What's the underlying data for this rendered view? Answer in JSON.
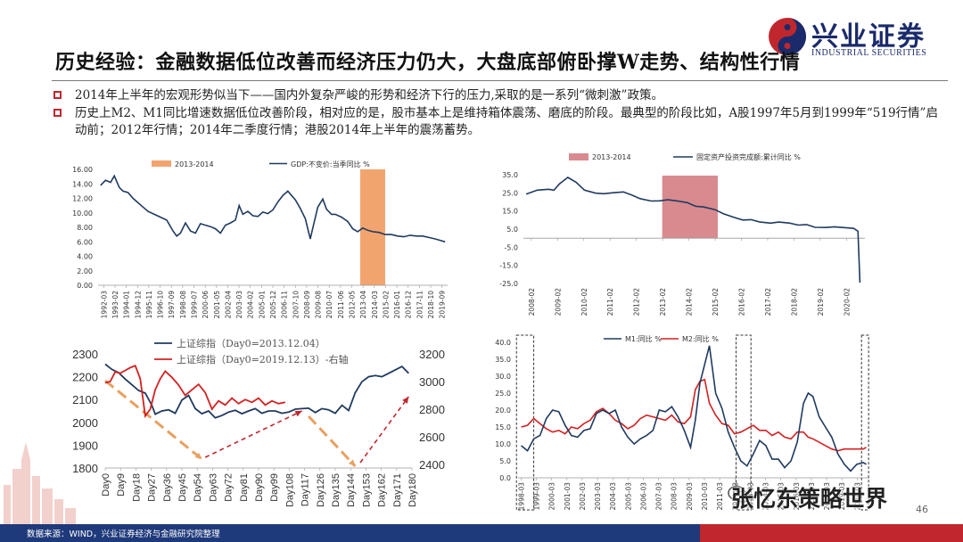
{
  "title": "历史经验：金融数据低位改善而经济压力仍大，大盘底部俯卧撑W走势、结构性行情",
  "brand": {
    "name": "兴业证券",
    "sub": "INDUSTRIAL SECURITIES",
    "logo_icon": "taiji-logo-icon"
  },
  "bullets": [
    "2014年上半年的宏观形势似当下——国内外复杂严峻的形势和经济下行的压力,采取的是一系列“微刺激”政策。",
    "历史上M2、M1同比增速数据低位改善阶段，相对应的是，股市基本上是维持箱体震荡、磨底的阶段。最典型的阶段比如，A股1997年5月到1999年“519行情”启动前；2012年行情；2014年二季度行情；港股2014年上半年的震荡蓄势。"
  ],
  "footer": {
    "source": "数据来源：WIND，兴业证券经济与金融研究院整理"
  },
  "page_number": "46",
  "watermark": "张忆东策略世界",
  "colors": {
    "navy": "#1f3a5f",
    "orange": "#f2a46e",
    "pink": "#d98a8f",
    "red": "#d42020",
    "brand_blue": "#1a2a6b",
    "brand_red": "#c0272d",
    "dashed_arrow_orange": "#e8a060",
    "dashed_arrow_red": "#c0272d"
  },
  "chart_data": [
    {
      "id": "gdp",
      "type": "line",
      "legend": [
        "2013-2014",
        "GDP:不变价:当季同比 %"
      ],
      "yticks": [
        "16.00",
        "14.00",
        "12.00",
        "10.00",
        "8.00",
        "6.00",
        "4.00",
        "2.00",
        "0.00"
      ],
      "ylim": [
        0,
        16
      ],
      "xticks": [
        "1992-03",
        "1993-02",
        "1994-01",
        "1994-12",
        "1995-11",
        "1996-10",
        "1997-09",
        "1998-08",
        "1999-07",
        "2000-06",
        "2001-05",
        "2002-04",
        "2003-03",
        "2004-02",
        "2005-01",
        "2005-12",
        "2006-11",
        "2007-10",
        "2008-09",
        "2009-08",
        "2010-07",
        "2011-06",
        "2012-05",
        "2013-04",
        "2014-03",
        "2015-02",
        "2016-01",
        "2016-12",
        "2017-11",
        "2018-10",
        "2019-09"
      ],
      "shade": {
        "from": 2013.0,
        "to": 2015.0
      },
      "xrange": [
        1992.0,
        2020.0
      ],
      "series": [
        {
          "name": "GDP:不变价:当季同比 %",
          "x": [
            1992.2,
            1992.6,
            1993.0,
            1993.3,
            1993.7,
            1994.0,
            1994.4,
            1994.8,
            1995.2,
            1995.6,
            1996.0,
            1996.5,
            1997.0,
            1997.5,
            1998.0,
            1998.3,
            1998.6,
            1999.0,
            1999.4,
            1999.8,
            2000.2,
            2000.6,
            2001.0,
            2001.4,
            2001.8,
            2002.2,
            2002.6,
            2003.0,
            2003.3,
            2003.6,
            2004.0,
            2004.4,
            2004.8,
            2005.2,
            2005.6,
            2006.0,
            2006.4,
            2006.8,
            2007.2,
            2007.5,
            2007.8,
            2008.2,
            2008.6,
            2009.0,
            2009.2,
            2009.6,
            2010.0,
            2010.3,
            2010.7,
            2011.0,
            2011.5,
            2012.0,
            2012.4,
            2012.8,
            2013.2,
            2013.6,
            2014.0,
            2014.5,
            2015.0,
            2015.5,
            2016.0,
            2016.5,
            2017.0,
            2017.5,
            2018.0,
            2018.5,
            2019.0,
            2019.4,
            2019.8
          ],
          "values": [
            13.8,
            14.5,
            14.2,
            15.1,
            13.5,
            13.0,
            12.8,
            12.0,
            11.4,
            10.8,
            10.2,
            9.8,
            9.4,
            9.0,
            7.5,
            6.8,
            7.2,
            8.6,
            7.5,
            7.2,
            8.5,
            8.3,
            8.1,
            7.8,
            7.2,
            8.3,
            8.6,
            9.0,
            11.0,
            9.8,
            10.2,
            9.6,
            9.5,
            10.1,
            9.9,
            10.4,
            11.5,
            12.4,
            13.0,
            12.4,
            11.8,
            10.6,
            9.2,
            6.4,
            7.9,
            10.8,
            11.9,
            10.5,
            9.8,
            9.8,
            9.4,
            8.8,
            7.8,
            7.4,
            7.9,
            7.6,
            7.4,
            7.3,
            7.0,
            7.0,
            6.8,
            6.7,
            6.9,
            6.8,
            6.8,
            6.6,
            6.4,
            6.2,
            6.0
          ]
        }
      ]
    },
    {
      "id": "fai",
      "type": "line",
      "legend": [
        "2013-2014",
        "固定资产投资完成额:累计同比 %"
      ],
      "yticks": [
        "35.0",
        "25.0",
        "15.0",
        "5.0",
        "-5.0",
        "-15.0",
        "-25.0"
      ],
      "ylim": [
        -25,
        35
      ],
      "xticks": [
        "2008-02",
        "2009-02",
        "2010-02",
        "2011-02",
        "2012-02",
        "2013-02",
        "2014-02",
        "2015-02",
        "2016-02",
        "2017-02",
        "2018-02",
        "2019-02",
        "2020-02"
      ],
      "shade": {
        "from": 2013.0,
        "to": 2015.0
      },
      "xrange": [
        2008.0,
        2020.3
      ],
      "series": [
        {
          "name": "固定资产投资完成额:累计同比 %",
          "x": [
            2008.1,
            2008.5,
            2008.9,
            2009.1,
            2009.3,
            2009.6,
            2009.9,
            2010.2,
            2010.6,
            2010.9,
            2011.2,
            2011.6,
            2011.9,
            2012.2,
            2012.6,
            2012.9,
            2013.2,
            2013.6,
            2013.9,
            2014.2,
            2014.5,
            2014.9,
            2015.2,
            2015.6,
            2015.9,
            2016.2,
            2016.5,
            2016.9,
            2017.2,
            2017.6,
            2017.9,
            2018.2,
            2018.5,
            2018.9,
            2019.2,
            2019.6,
            2019.9,
            2020.05,
            2020.12
          ],
          "values": [
            24.3,
            26.5,
            27.0,
            26.5,
            30.0,
            33.5,
            30.8,
            26.5,
            24.8,
            24.5,
            25.0,
            25.5,
            23.8,
            21.8,
            20.5,
            20.6,
            21.2,
            20.4,
            19.6,
            17.6,
            17.2,
            15.7,
            13.5,
            11.4,
            10.0,
            10.2,
            9.0,
            8.3,
            8.9,
            8.3,
            7.2,
            7.5,
            6.0,
            5.9,
            6.3,
            5.8,
            5.4,
            3.8,
            -24.5
          ]
        }
      ]
    },
    {
      "id": "szzs",
      "type": "line",
      "legend": [
        "上证综指（Day0=2013.12.04）",
        "上证综指（Day0=2019.12.13）-右轴"
      ],
      "yticks_left": [
        "2300",
        "2200",
        "2100",
        "2000",
        "1900",
        "1800"
      ],
      "yticks_right": [
        "3200",
        "3000",
        "2800",
        "2600",
        "2400"
      ],
      "ylim_left": [
        1800,
        2300
      ],
      "ylim_right": [
        2400,
        3200
      ],
      "xticks": [
        "Day0",
        "Day9",
        "Day18",
        "Day27",
        "Day36",
        "Day45",
        "Day54",
        "Day63",
        "Day72",
        "Day81",
        "Day90",
        "Day99",
        "Day108",
        "Day117",
        "Day126",
        "Day135",
        "Day144",
        "Day153",
        "Day162",
        "Day171",
        "Day180"
      ],
      "xrange": [
        0,
        184
      ],
      "series": [
        {
          "name": "上证综指（Day0=2013.12.04）",
          "axis": "left",
          "x": [
            0,
            4,
            8,
            12,
            16,
            20,
            24,
            28,
            30,
            34,
            38,
            42,
            46,
            50,
            54,
            58,
            62,
            66,
            70,
            74,
            78,
            82,
            86,
            90,
            94,
            98,
            102,
            106,
            110,
            114,
            118,
            122,
            126,
            130,
            134,
            138,
            142,
            146,
            150,
            154,
            158,
            162,
            166,
            170,
            174,
            178,
            182
          ],
          "values": [
            2255,
            2232,
            2218,
            2190,
            2165,
            2140,
            2128,
            2075,
            2036,
            2050,
            2055,
            2040,
            2098,
            2118,
            2060,
            2038,
            2050,
            2020,
            2030,
            2045,
            2053,
            2038,
            2050,
            2060,
            2040,
            2050,
            2050,
            2040,
            2045,
            2058,
            2060,
            2062,
            2043,
            2060,
            2055,
            2040,
            2075,
            2052,
            2130,
            2178,
            2200,
            2205,
            2200,
            2215,
            2230,
            2245,
            2215
          ]
        },
        {
          "name": "上证综指（Day0=2019.12.13）-右轴",
          "axis": "right",
          "x": [
            0,
            3,
            6,
            9,
            12,
            15,
            18,
            21,
            24,
            27,
            30,
            33,
            36,
            40,
            44,
            48,
            52,
            56,
            60,
            64,
            68,
            72,
            76,
            80,
            84,
            88,
            92,
            96,
            100,
            104,
            108
          ],
          "values": [
            2990,
            3000,
            3070,
            3060,
            3080,
            3100,
            3115,
            3020,
            2750,
            2800,
            2940,
            3020,
            3075,
            3030,
            2975,
            2900,
            2940,
            2980,
            2920,
            2800,
            2860,
            2830,
            2880,
            2840,
            2870,
            2850,
            2880,
            2830,
            2860,
            2840,
            2850
          ]
        }
      ],
      "arrows": [
        "down-left",
        "up-left",
        "down-right",
        "up-right"
      ]
    },
    {
      "id": "m1m2",
      "type": "line",
      "legend": [
        "M1:同比 %",
        "M2:同比 %"
      ],
      "yticks": [
        "40.0",
        "35.0",
        "30.0",
        "25.0",
        "20.0",
        "15.0",
        "10.0",
        "5.0",
        "0.0"
      ],
      "ylim": [
        0,
        40
      ],
      "xticks": [
        "1998-03",
        "1999-03",
        "2000-03",
        "2001-03",
        "2002-03",
        "2003-03",
        "2004-03",
        "2005-03",
        "2006-03",
        "2007-03",
        "2008-03",
        "2009-03",
        "2010-03",
        "2011-03",
        "2012-03",
        "2013-03",
        "2014-03",
        "2015-03",
        "2016-03",
        "2017-03",
        "2018-03",
        "2019-03",
        "2020-03"
      ],
      "xrange": [
        1998.0,
        2020.4
      ],
      "series": [
        {
          "name": "M1:同比 %",
          "x": [
            1998.2,
            1998.6,
            1999.0,
            1999.4,
            1999.8,
            2000.2,
            2000.6,
            2001.0,
            2001.4,
            2001.8,
            2002.2,
            2002.6,
            2003.0,
            2003.4,
            2003.8,
            2004.2,
            2004.6,
            2005.0,
            2005.4,
            2005.8,
            2006.2,
            2006.6,
            2007.0,
            2007.4,
            2007.8,
            2008.2,
            2008.6,
            2009.0,
            2009.3,
            2009.6,
            2009.9,
            2010.2,
            2010.6,
            2011.0,
            2011.4,
            2011.8,
            2012.2,
            2012.6,
            2013.0,
            2013.4,
            2013.8,
            2014.2,
            2014.6,
            2015.0,
            2015.4,
            2015.8,
            2016.2,
            2016.5,
            2016.8,
            2017.2,
            2017.6,
            2018.0,
            2018.4,
            2018.8,
            2019.2,
            2019.6,
            2020.0,
            2020.2
          ],
          "values": [
            9.5,
            8.0,
            11.5,
            12.5,
            17.5,
            20.0,
            19.5,
            15.5,
            12.5,
            12.0,
            14.0,
            14.5,
            19.0,
            20.0,
            19.0,
            20.0,
            15.0,
            12.0,
            10.0,
            11.5,
            12.5,
            14.0,
            20.0,
            19.5,
            21.0,
            18.0,
            14.0,
            9.0,
            17.0,
            28.0,
            33.5,
            39.0,
            25.0,
            20.5,
            13.5,
            9.0,
            5.0,
            3.5,
            7.0,
            11.0,
            9.5,
            5.5,
            5.5,
            3.0,
            5.0,
            10.5,
            22.0,
            25.0,
            24.0,
            18.0,
            15.0,
            12.0,
            7.0,
            4.0,
            2.0,
            4.0,
            4.5,
            4.0
          ]
        },
        {
          "name": "M2:同比 %",
          "x": [
            1998.2,
            1998.6,
            1999.0,
            1999.4,
            1999.8,
            2000.2,
            2000.6,
            2001.0,
            2001.4,
            2001.8,
            2002.2,
            2002.6,
            2003.0,
            2003.4,
            2003.8,
            2004.2,
            2004.6,
            2005.0,
            2005.4,
            2005.8,
            2006.2,
            2006.6,
            2007.0,
            2007.4,
            2007.8,
            2008.2,
            2008.6,
            2009.0,
            2009.3,
            2009.6,
            2009.9,
            2010.2,
            2010.6,
            2011.0,
            2011.4,
            2011.8,
            2012.2,
            2012.6,
            2013.0,
            2013.4,
            2013.8,
            2014.2,
            2014.6,
            2015.0,
            2015.4,
            2015.8,
            2016.2,
            2016.5,
            2016.8,
            2017.2,
            2017.6,
            2018.0,
            2018.4,
            2018.8,
            2019.2,
            2019.6,
            2020.0,
            2020.2
          ],
          "values": [
            15.0,
            15.5,
            17.5,
            16.0,
            14.5,
            13.5,
            14.0,
            13.0,
            15.0,
            14.5,
            16.0,
            17.0,
            19.5,
            20.5,
            19.0,
            17.0,
            16.0,
            14.5,
            15.5,
            17.5,
            18.5,
            18.0,
            17.5,
            17.0,
            18.5,
            16.5,
            16.0,
            18.0,
            26.0,
            28.5,
            29.0,
            22.0,
            18.5,
            16.0,
            15.5,
            13.0,
            13.5,
            14.5,
            15.5,
            14.0,
            14.0,
            12.5,
            13.5,
            12.0,
            11.5,
            13.5,
            13.5,
            12.0,
            11.5,
            10.5,
            9.5,
            8.5,
            8.0,
            8.5,
            8.5,
            8.5,
            8.5,
            9.0
          ]
        }
      ]
    }
  ]
}
